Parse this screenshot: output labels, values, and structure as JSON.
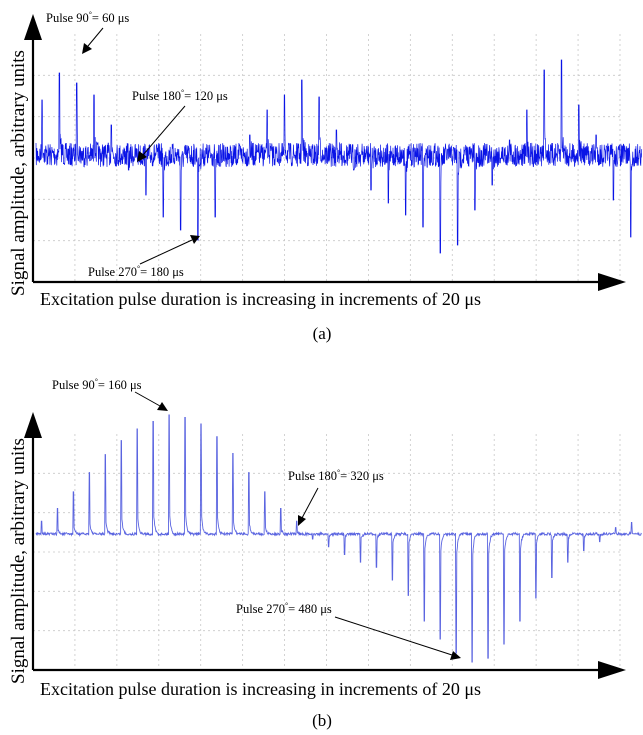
{
  "chart_data": [
    {
      "type": "line",
      "panel_label": "(a)",
      "title": "",
      "xlabel": "Excitation pulse duration is increasing in increments of 20 μs",
      "ylabel": "Signal amplitude, arbitrary units",
      "increment_us": 20,
      "grid": true,
      "series": [
        {
          "color": "#0a14e6",
          "noise": 0.12,
          "peaks": [
            0.55,
            0.82,
            0.72,
            0.6,
            0.3,
            -0.15,
            -0.4,
            -0.62,
            -0.75,
            -0.85,
            -0.62,
            -0.1,
            0.2,
            0.45,
            0.6,
            0.75,
            0.58,
            0.25,
            -0.15,
            -0.35,
            -0.48,
            -0.6,
            -0.72,
            -0.98,
            -0.9,
            -0.55,
            -0.3,
            0.15,
            0.45,
            0.85,
            0.95,
            0.5,
            0.2,
            -0.45,
            -0.82
          ]
        }
      ],
      "annotations": [
        {
          "text_pre": "Pulse 90",
          "text_post": "= 60 μs"
        },
        {
          "text_pre": "Pulse 180",
          "text_post": "= 120 μs"
        },
        {
          "text_pre": "Pulse 270",
          "text_post": "= 180 μs"
        }
      ]
    },
    {
      "type": "line",
      "panel_label": "(b)",
      "title": "",
      "xlabel": "Excitation pulse duration is increasing in increments of 20 μs",
      "ylabel": "Signal amplitude, arbitrary units",
      "increment_us": 20,
      "grid": true,
      "series": [
        {
          "color": "#5a64e0",
          "noise": 0.01,
          "peaks": [
            0.1,
            0.2,
            0.33,
            0.48,
            0.62,
            0.73,
            0.82,
            0.88,
            0.93,
            0.91,
            0.86,
            0.76,
            0.63,
            0.48,
            0.33,
            0.2,
            0.1,
            -0.04,
            -0.1,
            -0.16,
            -0.22,
            -0.26,
            -0.36,
            -0.48,
            -0.68,
            -0.82,
            -0.93,
            -1.0,
            -0.97,
            -0.86,
            -0.68,
            -0.5,
            -0.34,
            -0.22,
            -0.13,
            -0.06,
            0.05,
            0.09
          ]
        }
      ],
      "annotations": [
        {
          "text_pre": "Pulse 90",
          "text_post": "= 160 μs"
        },
        {
          "text_pre": "Pulse 180",
          "text_post": "= 320 μs"
        },
        {
          "text_pre": "Pulse 270",
          "text_post": "= 480 μs"
        }
      ]
    }
  ]
}
